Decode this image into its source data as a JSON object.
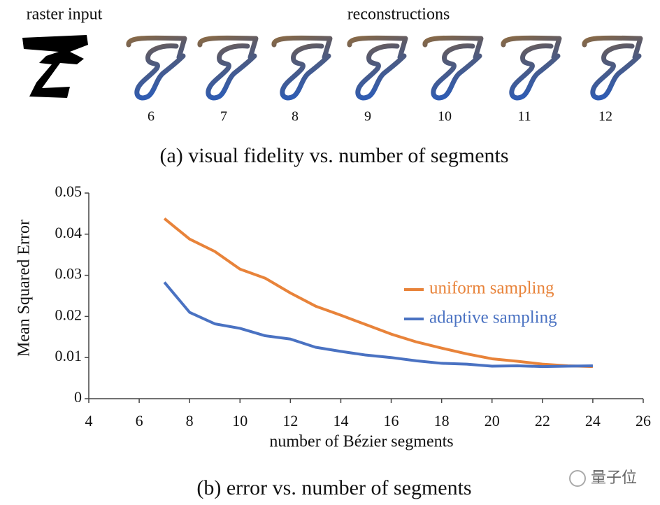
{
  "figure_a": {
    "input_label": "raster input",
    "reconstructions_label": "reconstructions",
    "segment_counts": [
      "6",
      "7",
      "8",
      "9",
      "10",
      "11",
      "12"
    ],
    "caption": "(a) visual fidelity vs. number of segments"
  },
  "chart_data": {
    "type": "line",
    "x_label": "number of Bézier segments",
    "y_label": "Mean Squared Error",
    "x": [
      7,
      8,
      9,
      10,
      11,
      12,
      13,
      14,
      15,
      16,
      17,
      18,
      19,
      20,
      21,
      22,
      23,
      24
    ],
    "series": [
      {
        "name": "uniform sampling",
        "color": "#e8833a",
        "values": [
          0.0438,
          0.0388,
          0.0358,
          0.0315,
          0.0293,
          0.0257,
          0.0225,
          0.0203,
          0.018,
          0.0157,
          0.0138,
          0.0123,
          0.0109,
          0.0097,
          0.0091,
          0.0084,
          0.008,
          0.0078
        ]
      },
      {
        "name": "adaptive sampling",
        "color": "#4a72c2",
        "values": [
          0.0283,
          0.021,
          0.0182,
          0.0171,
          0.0153,
          0.0145,
          0.0125,
          0.0115,
          0.0106,
          0.01,
          0.0092,
          0.0086,
          0.0084,
          0.0079,
          0.008,
          0.0078,
          0.0079,
          0.008
        ]
      }
    ],
    "xlim": [
      4,
      26
    ],
    "xticks": [
      4,
      6,
      8,
      10,
      12,
      14,
      16,
      18,
      20,
      22,
      24,
      26
    ],
    "ylim": [
      0,
      0.05
    ],
    "yticks": [
      0,
      0.01,
      0.02,
      0.03,
      0.04,
      0.05
    ],
    "legend": "right",
    "grid": false,
    "caption": "(b) error vs. number of segments"
  },
  "watermark": "量子位"
}
